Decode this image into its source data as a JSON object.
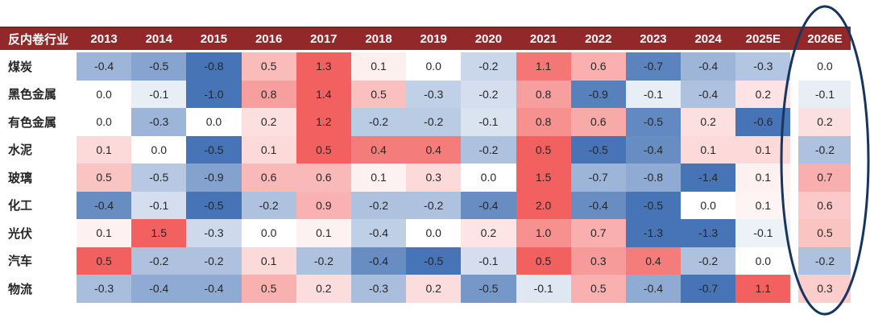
{
  "chart_data": {
    "type": "heatmap",
    "corner_label": "反内卷行业",
    "columns": [
      "2013",
      "2014",
      "2015",
      "2016",
      "2017",
      "2018",
      "2019",
      "2020",
      "2021",
      "2022",
      "2023",
      "2024",
      "2025E",
      "2026E"
    ],
    "rows": [
      {
        "label": "煤炭",
        "values": [
          -0.4,
          -0.5,
          -0.8,
          0.5,
          1.3,
          0.1,
          0.0,
          -0.2,
          1.1,
          0.6,
          -0.7,
          -0.4,
          -0.3,
          0.0
        ]
      },
      {
        "label": "黑色金属",
        "values": [
          0.0,
          -0.1,
          -1.0,
          0.8,
          1.4,
          0.5,
          -0.3,
          -0.2,
          0.8,
          -0.9,
          -0.1,
          -0.4,
          0.2,
          -0.1
        ]
      },
      {
        "label": "有色金属",
        "values": [
          0.0,
          -0.3,
          0.0,
          0.2,
          1.2,
          -0.2,
          -0.2,
          -0.1,
          0.8,
          0.6,
          -0.5,
          0.2,
          -0.6,
          0.2
        ]
      },
      {
        "label": "水泥",
        "values": [
          0.1,
          0.0,
          -0.5,
          0.1,
          0.5,
          0.4,
          0.4,
          -0.2,
          0.5,
          -0.5,
          -0.4,
          0.1,
          0.1,
          -0.2
        ]
      },
      {
        "label": "玻璃",
        "values": [
          0.5,
          -0.5,
          -0.9,
          0.6,
          0.6,
          0.1,
          0.3,
          0.0,
          1.5,
          -0.7,
          -0.8,
          -1.4,
          0.1,
          0.7
        ]
      },
      {
        "label": "化工",
        "values": [
          -0.4,
          -0.1,
          -0.5,
          -0.2,
          0.9,
          -0.2,
          -0.2,
          -0.4,
          2.0,
          -0.4,
          -0.5,
          0.0,
          0.1,
          0.6
        ]
      },
      {
        "label": "光伏",
        "values": [
          0.1,
          1.5,
          -0.3,
          0.0,
          0.1,
          -0.4,
          0.0,
          0.2,
          1.0,
          0.7,
          -1.3,
          -1.3,
          -0.1,
          0.5
        ]
      },
      {
        "label": "汽车",
        "values": [
          0.5,
          -0.2,
          -0.2,
          0.1,
          -0.2,
          -0.4,
          -0.5,
          -0.1,
          0.5,
          0.3,
          0.4,
          -0.2,
          0.0,
          -0.2
        ]
      },
      {
        "label": "物流",
        "values": [
          -0.3,
          -0.4,
          -0.4,
          0.5,
          0.2,
          -0.3,
          0.2,
          -0.5,
          -0.1,
          0.5,
          -0.4,
          -0.7,
          1.1,
          0.3
        ]
      }
    ],
    "value_format": "one-decimal",
    "color_scale": {
      "positive_max_color": "#F2605F",
      "negative_min_color": "#4674B6",
      "neutral_color": "#FFFFFF",
      "normalization": "per-row"
    },
    "highlighted_column": "2026E",
    "legend": "none",
    "grid": "off"
  },
  "colors": {
    "header_bg": "#93282B",
    "header_border_top": "#7E2023",
    "header_text": "#FFFFFF",
    "cell_text": "#262626",
    "background": "#FFFFFF",
    "ellipse_stroke": "#17365D"
  },
  "annotation": {
    "shape": "ellipse",
    "target_column": "2026E"
  }
}
